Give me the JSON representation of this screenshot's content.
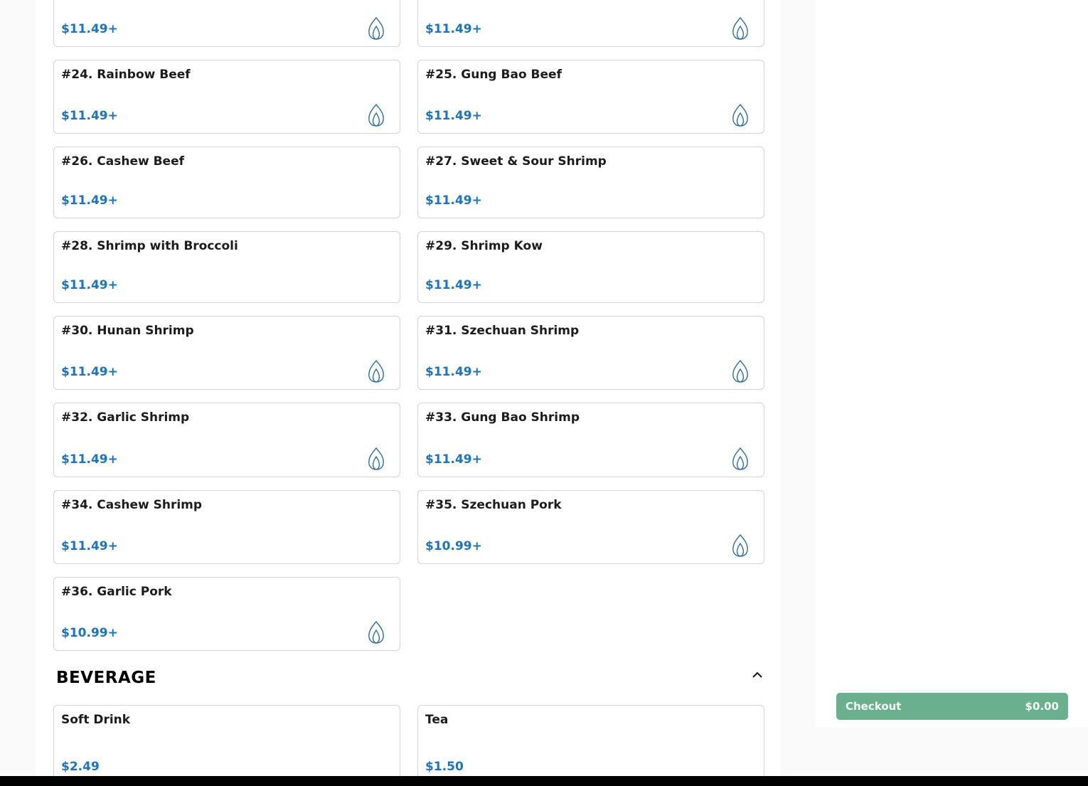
{
  "colors": {
    "price": "#1a73c4",
    "checkout_bg": "#6ab08f",
    "spicy_icon": "#2a6fa8"
  },
  "menu_items": [
    {
      "name": "",
      "price": "$11.49+",
      "spicy": true
    },
    {
      "name": "",
      "price": "$11.49+",
      "spicy": true
    },
    {
      "name": "#24. Rainbow Beef",
      "price": "$11.49+",
      "spicy": true
    },
    {
      "name": "#25. Gung Bao Beef",
      "price": "$11.49+",
      "spicy": true
    },
    {
      "name": "#26. Cashew Beef",
      "price": "$11.49+",
      "spicy": false
    },
    {
      "name": "#27. Sweet & Sour Shrimp",
      "price": "$11.49+",
      "spicy": false
    },
    {
      "name": "#28. Shrimp with Broccoli",
      "price": "$11.49+",
      "spicy": false
    },
    {
      "name": "#29. Shrimp Kow",
      "price": "$11.49+",
      "spicy": false
    },
    {
      "name": "#30. Hunan Shrimp",
      "price": "$11.49+",
      "spicy": true
    },
    {
      "name": "#31. Szechuan Shrimp",
      "price": "$11.49+",
      "spicy": true
    },
    {
      "name": "#32. Garlic Shrimp",
      "price": "$11.49+",
      "spicy": true
    },
    {
      "name": "#33. Gung Bao Shrimp",
      "price": "$11.49+",
      "spicy": true
    },
    {
      "name": "#34. Cashew Shrimp",
      "price": "$11.49+",
      "spicy": false
    },
    {
      "name": "#35. Szechuan Pork",
      "price": "$10.99+",
      "spicy": true
    },
    {
      "name": "#36. Garlic Pork",
      "price": "$10.99+",
      "spicy": true
    }
  ],
  "beverage_section": {
    "title": "BEVERAGE",
    "items": [
      {
        "name": "Soft Drink",
        "price": "$2.49",
        "spicy": false
      },
      {
        "name": "Tea",
        "price": "$1.50",
        "spicy": false
      }
    ]
  },
  "cart": {
    "checkout_label": "Checkout",
    "total": "$0.00"
  }
}
